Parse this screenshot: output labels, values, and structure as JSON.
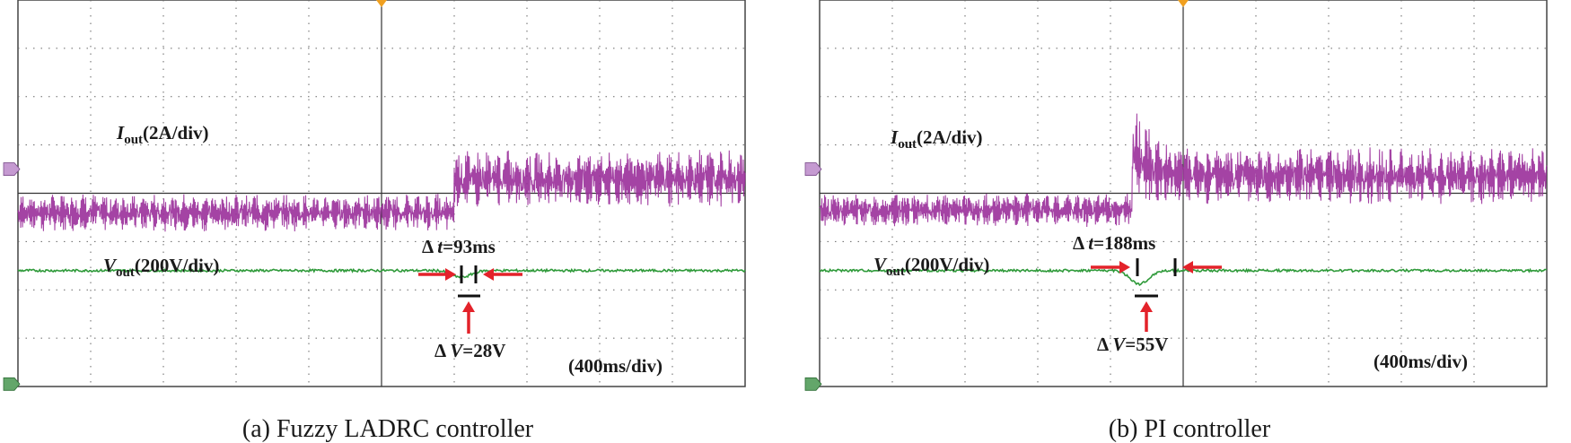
{
  "colors": {
    "current": "#9a2f9a",
    "voltage": "#2f9a3a",
    "annotation": "#e3222a",
    "grid": "#555555",
    "marker": "#f0a020"
  },
  "chart_data": [
    {
      "type": "line",
      "caption": "(a) Fuzzy LADRC controller",
      "time_scale": "(400ms/div)",
      "current_label": {
        "symbol": "I",
        "sub": "out",
        "scale": "(2A/div)"
      },
      "voltage_label": {
        "symbol": "V",
        "sub": "out",
        "scale": "(200V/div)"
      },
      "grid": {
        "x_divisions": 10,
        "y_divisions": 8
      },
      "step_time_div": 6.0,
      "current": {
        "before_mean_div": 3.6,
        "before_ripple_div": 0.4,
        "after_mean_div": 4.3,
        "after_ripple_div": 0.6
      },
      "voltage": {
        "level_div": 2.4,
        "dip_div": 0.14
      },
      "delta_t": {
        "prefix": "Δ ",
        "var": "t",
        "value": "=93ms"
      },
      "delta_v": {
        "prefix": "Δ ",
        "var": "V",
        "value": "=28V"
      }
    },
    {
      "type": "line",
      "caption": "(b) PI controller",
      "time_scale": "(400ms/div)",
      "current_label": {
        "symbol": "I",
        "sub": "out",
        "scale": "(2A/div)"
      },
      "voltage_label": {
        "symbol": "V",
        "sub": "out",
        "scale": "(200V/div)"
      },
      "grid": {
        "x_divisions": 10,
        "y_divisions": 8
      },
      "step_time_div": 4.3,
      "current": {
        "before_mean_div": 3.65,
        "before_ripple_div": 0.35,
        "after_mean_div": 4.35,
        "after_ripple_div": 0.6,
        "overshoot_div": 1.5
      },
      "voltage": {
        "level_div": 2.4,
        "dip_div": 0.28
      },
      "delta_t": {
        "prefix": "Δ ",
        "var": "t",
        "value": "=188ms"
      },
      "delta_v": {
        "prefix": "Δ ",
        "var": "V",
        "value": "=55V"
      }
    }
  ]
}
